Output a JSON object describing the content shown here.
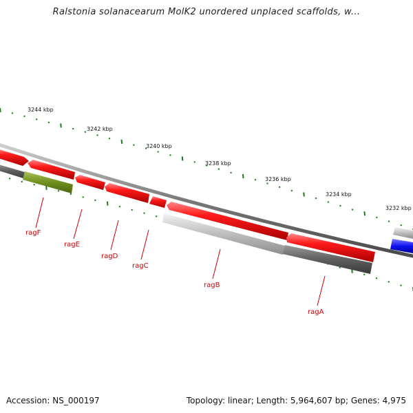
{
  "title": "Ralstonia solanacearum MolK2 unordered unplaced scaffolds, w...",
  "footer": {
    "accession": "Accession: NS_000197",
    "summary": "Topology: linear; Length: 5,964,607 bp; Genes: 4,975"
  },
  "scale": {
    "unit": "kbp",
    "labels": [
      "3244 kbp",
      "3242 kbp",
      "3240 kbp",
      "3238 kbp",
      "3236 kbp",
      "3234 kbp",
      "3232 kbp"
    ]
  },
  "genes": [
    {
      "name": "ragF"
    },
    {
      "name": "ragE"
    },
    {
      "name": "ragD"
    },
    {
      "name": "ragC"
    },
    {
      "name": "ragB"
    },
    {
      "name": "ragA"
    }
  ],
  "colors": {
    "gene": "#ee0000",
    "scale_ticks": "#1a7a1a",
    "backbone": "#777777",
    "olive_feature": "#6f8f1e",
    "blue_feature": "#1010ee",
    "gene_label": "#cc0000"
  }
}
